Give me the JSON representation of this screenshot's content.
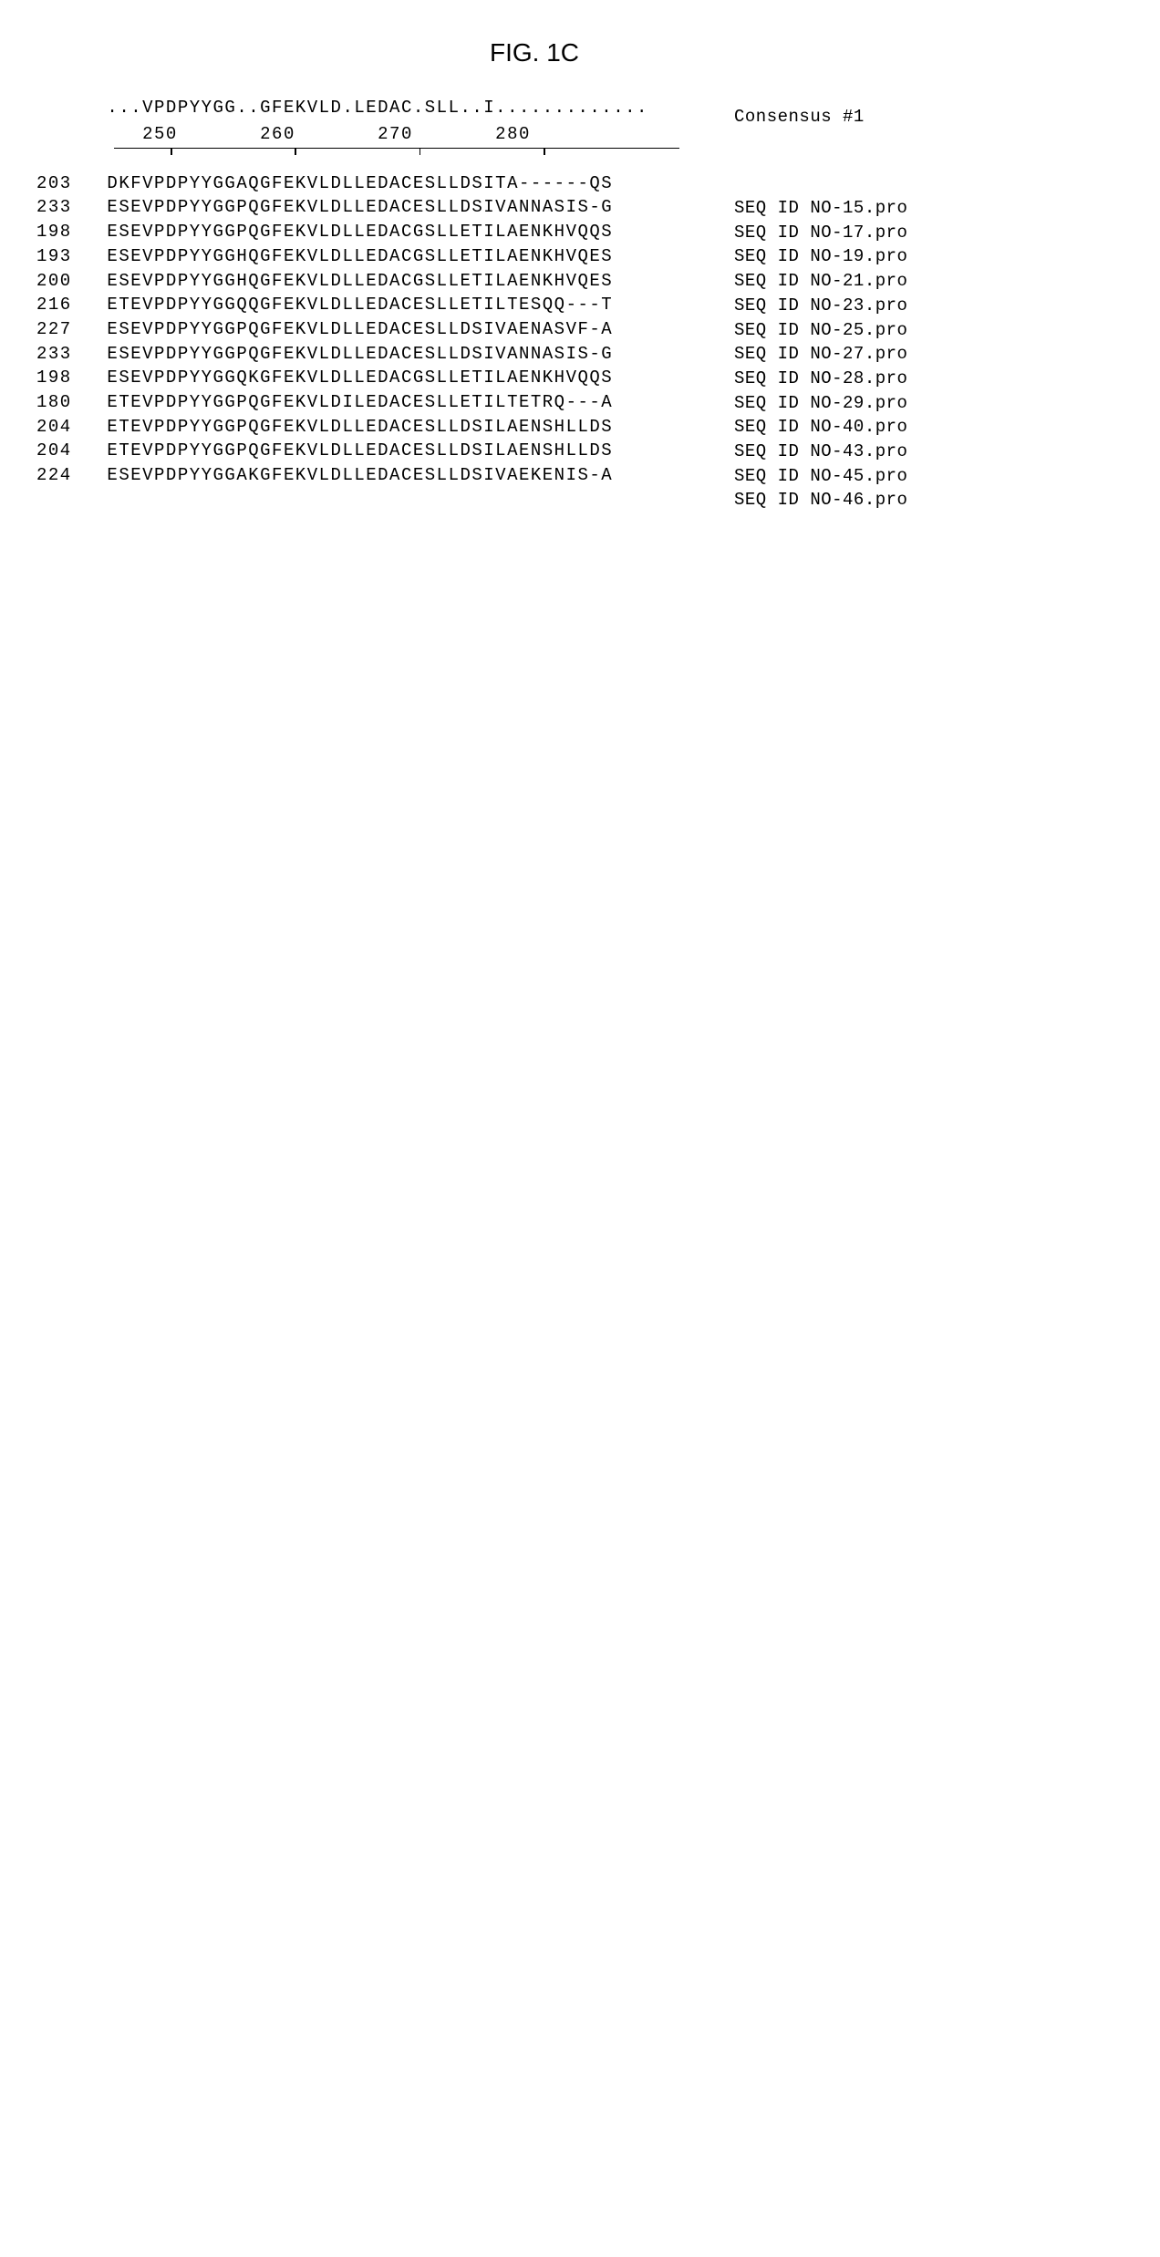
{
  "figure_label": "FIG. 1C",
  "consensus_label": "Consensus #1",
  "consensus_pattern": "...VPDPYYGG..GFEKVLD.LEDAC.SLL..I.............",
  "ruler": {
    "ticks": [
      250,
      260,
      270,
      280
    ],
    "display": "         250       260       270       280"
  },
  "rows": [
    {
      "pos": 203,
      "seq": "DKFVPDPYYGGAQGFEKVLDLLEDACESLLDSITA------QS",
      "label": "SEQ ID NO-15.pro"
    },
    {
      "pos": 233,
      "seq": "ESEVPDPYYGGPQGFEKVLDLLEDACESLLDSIVANNASIS-G",
      "label": "SEQ ID NO-17.pro"
    },
    {
      "pos": 198,
      "seq": "ESEVPDPYYGGPQGFEKVLDLLEDACGSLLETILAENKHVQQS",
      "label": "SEQ ID NO-19.pro"
    },
    {
      "pos": 193,
      "seq": "ESEVPDPYYGGHQGFEKVLDLLEDACGSLLETILAENKHVQES",
      "label": "SEQ ID NO-21.pro"
    },
    {
      "pos": 200,
      "seq": "ESEVPDPYYGGHQGFEKVLDLLEDACGSLLETILAENKHVQES",
      "label": "SEQ ID NO-23.pro"
    },
    {
      "pos": 216,
      "seq": "ETEVPDPYYGGQQGFEKVLDLLEDACESLLETILTESQQ---T",
      "label": "SEQ ID NO-25.pro"
    },
    {
      "pos": 227,
      "seq": "ESEVPDPYYGGPQGFEKVLDLLEDACESLLDSIVAENASVF-A",
      "label": "SEQ ID NO-27.pro"
    },
    {
      "pos": 233,
      "seq": "ESEVPDPYYGGPQGFEKVLDLLEDACESLLDSIVANNASIS-G",
      "label": "SEQ ID NO-28.pro"
    },
    {
      "pos": 198,
      "seq": "ESEVPDPYYGGQKGFEKVLDLLEDACGSLLETILAENKHVQQS",
      "label": "SEQ ID NO-29.pro"
    },
    {
      "pos": 180,
      "seq": "ETEVPDPYYGGPQGFEKVLDILEDACESLLETILTETRQ---A",
      "label": "SEQ ID NO-40.pro"
    },
    {
      "pos": 204,
      "seq": "ETEVPDPYYGGPQGFEKVLDLLEDACESLLDSILAENSHLLDS",
      "label": "SEQ ID NO-43.pro"
    },
    {
      "pos": 204,
      "seq": "ETEVPDPYYGGPQGFEKVLDLLEDACESLLDSILAENSHLLDS",
      "label": "SEQ ID NO-45.pro"
    },
    {
      "pos": 224,
      "seq": "ESEVPDPYYGGAKGFEKVLDLLEDACESLLDSIVAEKENIS-A",
      "label": "SEQ ID NO-46.pro"
    }
  ],
  "tick_positions_pct": [
    10,
    32,
    54,
    76
  ]
}
